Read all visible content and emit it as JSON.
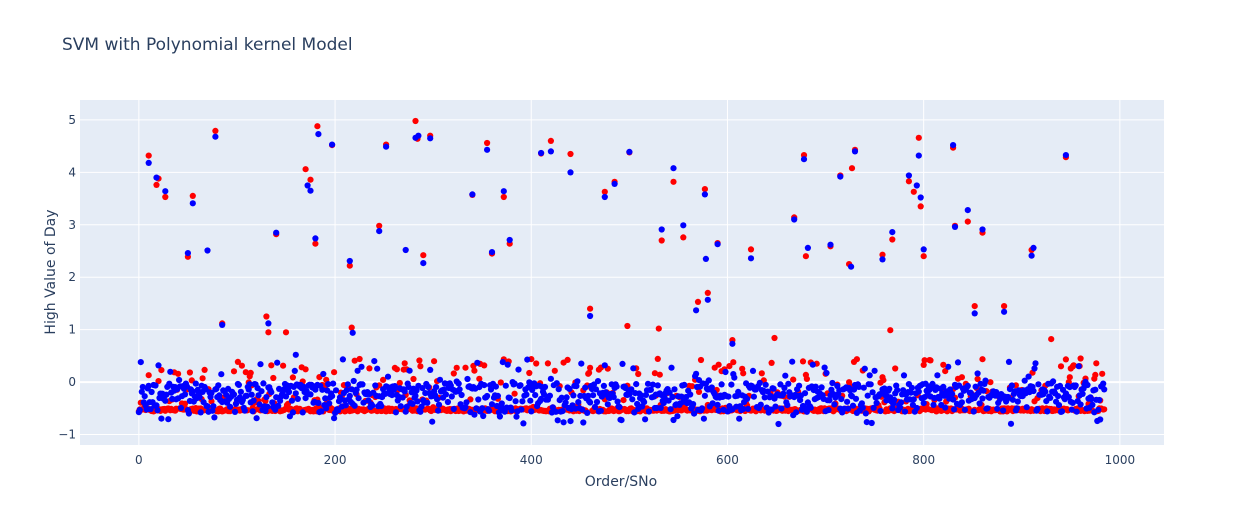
{
  "chart_data": {
    "type": "scatter",
    "title": "SVM with Polynomial kernel Model",
    "xlabel": "Order/SNo",
    "ylabel": "High Value of Day",
    "xlim": [
      -60,
      1045
    ],
    "ylim": [
      -1.2,
      5.38
    ],
    "x_ticks": [
      0,
      200,
      400,
      600,
      800,
      1000
    ],
    "y_ticks": [
      -1,
      0,
      1,
      2,
      3,
      4,
      5
    ],
    "grid": true,
    "legend": "none",
    "background_color": "#e5ecf6",
    "series": [
      {
        "color": "#ff0000",
        "outliers": [
          [
            10,
            4.32
          ],
          [
            18,
            3.76
          ],
          [
            20,
            3.88
          ],
          [
            27,
            3.53
          ],
          [
            50,
            2.39
          ],
          [
            55,
            3.55
          ],
          [
            78,
            4.79
          ],
          [
            85,
            1.12
          ],
          [
            130,
            1.25
          ],
          [
            132,
            0.95
          ],
          [
            140,
            2.82
          ],
          [
            150,
            0.95
          ],
          [
            170,
            4.06
          ],
          [
            175,
            3.86
          ],
          [
            180,
            2.64
          ],
          [
            182,
            4.88
          ],
          [
            197,
            4.52
          ],
          [
            215,
            2.22
          ],
          [
            217,
            1.04
          ],
          [
            245,
            2.98
          ],
          [
            252,
            4.53
          ],
          [
            282,
            4.98
          ],
          [
            284,
            4.64
          ],
          [
            290,
            2.42
          ],
          [
            297,
            4.7
          ],
          [
            340,
            3.57
          ],
          [
            355,
            4.56
          ],
          [
            360,
            2.45
          ],
          [
            372,
            3.53
          ],
          [
            378,
            2.64
          ],
          [
            410,
            4.36
          ],
          [
            420,
            4.6
          ],
          [
            440,
            4.35
          ],
          [
            460,
            1.4
          ],
          [
            475,
            3.63
          ],
          [
            485,
            3.82
          ],
          [
            498,
            1.07
          ],
          [
            500,
            4.38
          ],
          [
            530,
            1.02
          ],
          [
            533,
            2.7
          ],
          [
            545,
            3.82
          ],
          [
            555,
            2.76
          ],
          [
            570,
            1.53
          ],
          [
            577,
            3.68
          ],
          [
            580,
            1.7
          ],
          [
            590,
            2.65
          ],
          [
            605,
            0.8
          ],
          [
            624,
            2.53
          ],
          [
            648,
            0.84
          ],
          [
            668,
            3.14
          ],
          [
            678,
            4.33
          ],
          [
            680,
            2.4
          ],
          [
            705,
            2.59
          ],
          [
            715,
            3.94
          ],
          [
            724,
            2.25
          ],
          [
            727,
            4.08
          ],
          [
            730,
            4.43
          ],
          [
            758,
            2.43
          ],
          [
            768,
            2.72
          ],
          [
            766,
            0.99
          ],
          [
            785,
            3.83
          ],
          [
            790,
            3.63
          ],
          [
            795,
            4.66
          ],
          [
            797,
            3.35
          ],
          [
            800,
            2.4
          ],
          [
            820,
            0.33
          ],
          [
            830,
            4.47
          ],
          [
            832,
            2.98
          ],
          [
            845,
            3.06
          ],
          [
            852,
            1.45
          ],
          [
            860,
            2.85
          ],
          [
            882,
            1.45
          ],
          [
            910,
            2.52
          ],
          [
            930,
            0.82
          ],
          [
            945,
            4.29
          ],
          [
            960,
            0.45
          ]
        ]
      },
      {
        "color": "#0000ff",
        "outliers": [
          [
            10,
            4.18
          ],
          [
            18,
            3.9
          ],
          [
            27,
            3.64
          ],
          [
            50,
            2.46
          ],
          [
            55,
            3.41
          ],
          [
            70,
            2.51
          ],
          [
            78,
            4.68
          ],
          [
            85,
            1.09
          ],
          [
            132,
            1.12
          ],
          [
            140,
            2.85
          ],
          [
            160,
            0.52
          ],
          [
            172,
            3.75
          ],
          [
            175,
            3.65
          ],
          [
            180,
            2.74
          ],
          [
            183,
            4.73
          ],
          [
            197,
            4.53
          ],
          [
            215,
            2.31
          ],
          [
            218,
            0.94
          ],
          [
            245,
            2.88
          ],
          [
            252,
            4.49
          ],
          [
            272,
            2.52
          ],
          [
            282,
            4.66
          ],
          [
            285,
            4.7
          ],
          [
            290,
            2.27
          ],
          [
            297,
            4.65
          ],
          [
            340,
            3.58
          ],
          [
            355,
            4.43
          ],
          [
            360,
            2.48
          ],
          [
            372,
            3.64
          ],
          [
            378,
            2.71
          ],
          [
            410,
            4.37
          ],
          [
            420,
            4.4
          ],
          [
            440,
            4.0
          ],
          [
            460,
            1.26
          ],
          [
            475,
            3.53
          ],
          [
            485,
            3.78
          ],
          [
            500,
            4.39
          ],
          [
            533,
            2.91
          ],
          [
            545,
            4.08
          ],
          [
            555,
            2.99
          ],
          [
            568,
            1.37
          ],
          [
            577,
            3.58
          ],
          [
            580,
            1.57
          ],
          [
            578,
            2.35
          ],
          [
            590,
            2.63
          ],
          [
            605,
            0.73
          ],
          [
            624,
            2.36
          ],
          [
            668,
            3.1
          ],
          [
            678,
            4.25
          ],
          [
            682,
            2.56
          ],
          [
            705,
            2.62
          ],
          [
            715,
            3.92
          ],
          [
            726,
            2.2
          ],
          [
            730,
            4.4
          ],
          [
            758,
            2.34
          ],
          [
            768,
            2.86
          ],
          [
            785,
            3.94
          ],
          [
            793,
            3.75
          ],
          [
            795,
            4.32
          ],
          [
            797,
            3.52
          ],
          [
            800,
            2.53
          ],
          [
            830,
            4.52
          ],
          [
            832,
            2.96
          ],
          [
            845,
            3.28
          ],
          [
            852,
            1.31
          ],
          [
            860,
            2.91
          ],
          [
            882,
            1.34
          ],
          [
            910,
            2.41
          ],
          [
            912,
            2.56
          ],
          [
            945,
            4.33
          ]
        ]
      }
    ]
  }
}
